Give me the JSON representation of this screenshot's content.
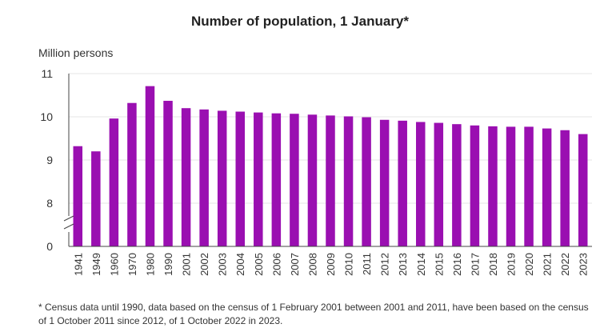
{
  "chart_data": {
    "type": "bar",
    "title": "Number of population, 1 January*",
    "ylabel": "Million persons",
    "xlabel": "",
    "categories": [
      "1941",
      "1949",
      "1960",
      "1970",
      "1980",
      "1990",
      "2001",
      "2002",
      "2003",
      "2004",
      "2005",
      "2006",
      "2007",
      "2008",
      "2009",
      "2010",
      "2011",
      "2012",
      "2013",
      "2014",
      "2015",
      "2016",
      "2017",
      "2018",
      "2019",
      "2020",
      "2021",
      "2022",
      "2023"
    ],
    "values": [
      9.32,
      9.2,
      9.96,
      10.32,
      10.71,
      10.37,
      10.2,
      10.17,
      10.14,
      10.12,
      10.1,
      10.08,
      10.07,
      10.05,
      10.03,
      10.01,
      9.99,
      9.93,
      9.91,
      9.88,
      9.86,
      9.83,
      9.8,
      9.78,
      9.77,
      9.77,
      9.73,
      9.69,
      9.6
    ],
    "y_ticks": [
      "0",
      "8",
      "9",
      "10",
      "11"
    ],
    "ylim": [
      7.5,
      11
    ],
    "axis_break": true,
    "grid": true,
    "bar_color": "#9a0fb1",
    "footnote": "* Census data until 1990, data based on the census of 1 February 2001 between 2001 and 2011, have been based on the census of 1 October 2011 since 2012, of 1 October 2022 in 2023."
  }
}
